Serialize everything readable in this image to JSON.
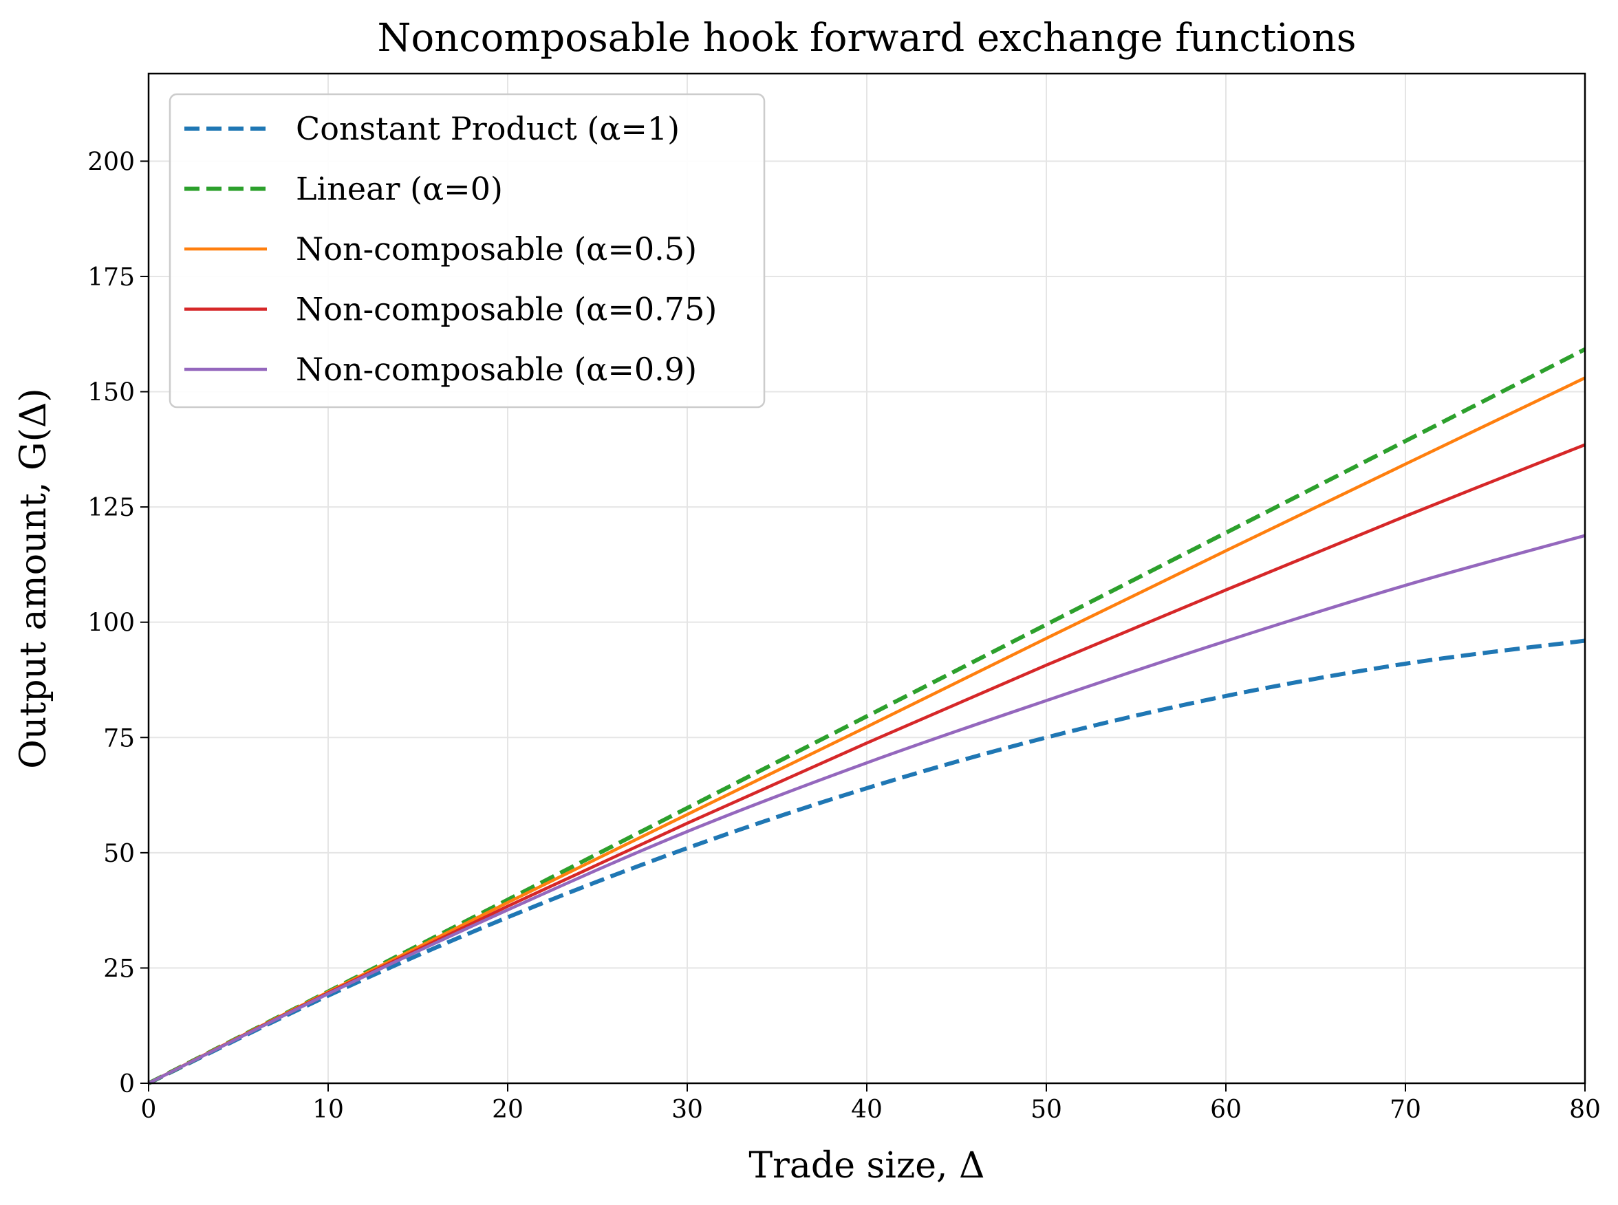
{
  "chart_data": {
    "type": "line",
    "title": "Noncomposable hook forward exchange functions",
    "xlabel": "Trade size, Δ",
    "ylabel": "Output amount, G(Δ)",
    "xlim": [
      0,
      80
    ],
    "ylim": [
      0,
      219
    ],
    "xticks": [
      "0",
      "10",
      "20",
      "30",
      "40",
      "50",
      "60",
      "70",
      "80"
    ],
    "yticks": [
      "0",
      "25",
      "50",
      "75",
      "100",
      "125",
      "150",
      "175",
      "200"
    ],
    "grid": true,
    "legend_position": "top-left",
    "series": [
      {
        "name": "Constant Product (α=1)",
        "color": "#1f77b4",
        "style": "dashed",
        "x": [
          0,
          10,
          20,
          30,
          40,
          50,
          60,
          70,
          80
        ],
        "y": [
          0,
          19.0,
          36.0,
          51.0,
          64.0,
          75.0,
          84.0,
          91.0,
          96.0
        ]
      },
      {
        "name": "Linear (α=0)",
        "color": "#2ca02c",
        "style": "dashed",
        "x": [
          0,
          10,
          20,
          30,
          40,
          50,
          60,
          70,
          80
        ],
        "y": [
          0,
          19.9,
          39.8,
          59.7,
          79.6,
          99.5,
          119.4,
          139.3,
          159.2
        ]
      },
      {
        "name": "Non-composable (α=0.5)",
        "color": "#ff7f0e",
        "style": "solid",
        "x": [
          0,
          10,
          20,
          30,
          40,
          50,
          60,
          70,
          80
        ],
        "y": [
          0,
          19.8,
          39.2,
          58.3,
          77.3,
          96.5,
          115.5,
          134.3,
          153.0
        ]
      },
      {
        "name": "Non-composable (α=0.75)",
        "color": "#d62728",
        "style": "solid",
        "x": [
          0,
          10,
          20,
          30,
          40,
          50,
          60,
          70,
          80
        ],
        "y": [
          0,
          19.6,
          38.4,
          56.4,
          73.8,
          90.7,
          107.0,
          123.0,
          138.5
        ]
      },
      {
        "name": "Non-composable (α=0.9)",
        "color": "#9467bd",
        "style": "solid",
        "x": [
          0,
          10,
          20,
          30,
          40,
          50,
          60,
          70,
          80
        ],
        "y": [
          0,
          19.4,
          37.6,
          54.6,
          69.5,
          83.0,
          95.9,
          108.0,
          118.8
        ]
      }
    ]
  }
}
